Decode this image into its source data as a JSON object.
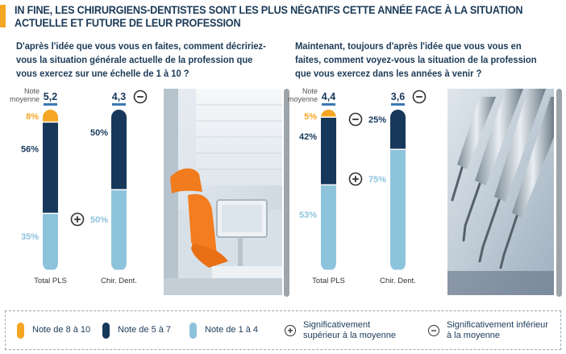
{
  "header": {
    "title": "IN FINE, LES CHIRURGIENS-DENTISTES SONT LES PLUS NÉGATIFS CETTE ANNÉE FACE À LA SITUATION ACTUELLE ET FUTURE DE LEUR PROFESSION",
    "accent_color": "#f5a623"
  },
  "colors": {
    "high": "#f5a623",
    "mid": "#17385a",
    "low": "#8ec3dc",
    "plus_minus": "#333333"
  },
  "mean_label": "Note moyenne",
  "chart_data": [
    {
      "type": "bar",
      "title": "D'après l'idée que vous vous en faites, comment décririez-vous la situation générale  actuelle de la profession que vous exercez sur une échelle de 1 à 10 ?",
      "categories": [
        "Total PLS",
        "Chir. Dent."
      ],
      "stacked": true,
      "series": [
        {
          "name": "Note de 8 à 10",
          "values": [
            8,
            null
          ],
          "labels": [
            "8%",
            ""
          ]
        },
        {
          "name": "Note de 5 à 7",
          "values": [
            56,
            50
          ],
          "labels": [
            "56%",
            "50%"
          ]
        },
        {
          "name": "Note de 1 à 4",
          "values": [
            35,
            50
          ],
          "labels": [
            "35%",
            "50%"
          ]
        }
      ],
      "means": [
        "5,2",
        "4,3"
      ],
      "significance": {
        "mean": [
          null,
          "minus"
        ],
        "segments": [
          [
            null,
            null,
            null
          ],
          [
            null,
            null,
            "plus"
          ]
        ]
      }
    },
    {
      "type": "bar",
      "title": "Maintenant, toujours d'après l'idée que vous vous en faites, comment voyez-vous la situation de la profession que vous exercez dans les années à venir ?",
      "categories": [
        "Total PLS",
        "Chir. Dent."
      ],
      "stacked": true,
      "series": [
        {
          "name": "Note de 8 à 10",
          "values": [
            5,
            null
          ],
          "labels": [
            "5%",
            ""
          ]
        },
        {
          "name": "Note de 5 à 7",
          "values": [
            42,
            25
          ],
          "labels": [
            "42%",
            "25%"
          ]
        },
        {
          "name": "Note de 1 à 4",
          "values": [
            53,
            75
          ],
          "labels": [
            "53%",
            "75%"
          ]
        }
      ],
      "means": [
        "4,4",
        "3,6"
      ],
      "significance": {
        "mean": [
          null,
          "minus"
        ],
        "segments": [
          [
            null,
            null,
            null
          ],
          [
            null,
            "minus",
            "plus"
          ]
        ]
      }
    }
  ],
  "legend": [
    {
      "kind": "swatch",
      "color": "#f5a623",
      "label": "Note de 8 à 10"
    },
    {
      "kind": "swatch",
      "color": "#17385a",
      "label": "Note de 5 à 7"
    },
    {
      "kind": "swatch",
      "color": "#8ec3dc",
      "label": "Note de 1 à 4"
    },
    {
      "kind": "sign",
      "sign": "+",
      "label": "Significativement supérieur à la moyenne"
    },
    {
      "kind": "sign",
      "sign": "−",
      "label": "Significativement inférieur à la moyenne"
    }
  ],
  "photos": [
    {
      "name": "dental-chair-photo"
    },
    {
      "name": "dental-instruments-photo"
    }
  ]
}
